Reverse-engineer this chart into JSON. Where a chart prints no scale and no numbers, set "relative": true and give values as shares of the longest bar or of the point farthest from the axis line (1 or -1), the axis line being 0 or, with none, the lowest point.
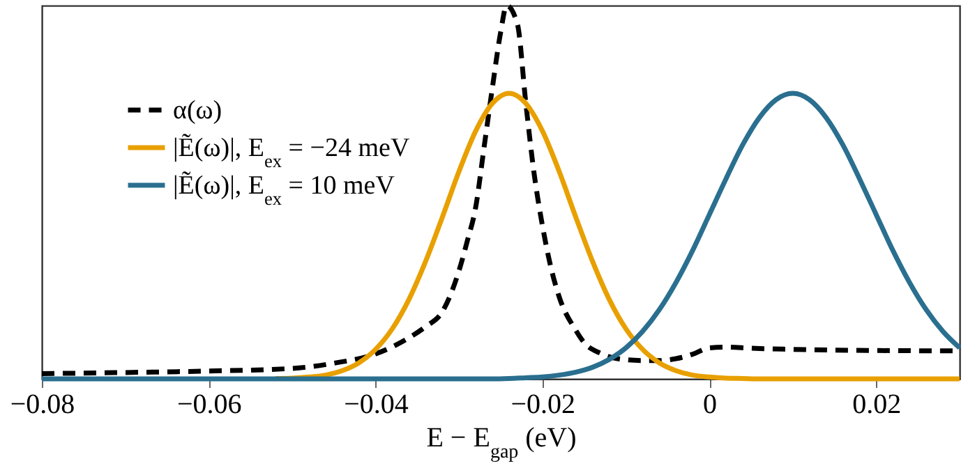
{
  "chart_data": {
    "type": "line",
    "relative": true,
    "xlabel": "E − E$_{gap}$ (eV)",
    "legend": "top left",
    "grid": false,
    "xlim": [
      -0.08,
      0.03
    ],
    "xticks": [
      -0.08,
      -0.06,
      -0.04,
      -0.02,
      0,
      0.02
    ],
    "x": [
      -0.08,
      -0.078,
      -0.076,
      -0.074,
      -0.072,
      -0.07,
      -0.068,
      -0.066,
      -0.064,
      -0.062,
      -0.06,
      -0.058,
      -0.056,
      -0.054,
      -0.052,
      -0.05,
      -0.048,
      -0.046,
      -0.044,
      -0.042,
      -0.04,
      -0.038,
      -0.036,
      -0.034,
      -0.032,
      -0.03,
      -0.028,
      -0.026,
      -0.024,
      -0.022,
      -0.02,
      -0.018,
      -0.016,
      -0.014,
      -0.012,
      -0.01,
      -0.008,
      -0.006,
      -0.004,
      -0.002,
      0,
      0.002,
      0.004,
      0.006,
      0.008,
      0.01,
      0.012,
      0.014,
      0.016,
      0.018,
      0.02,
      0.022,
      0.024,
      0.026,
      0.028,
      0.03
    ],
    "series": [
      {
        "name": "α(ω)",
        "color": "#000000",
        "line_style": "dashed",
        "x": [
          -0.08,
          -0.07,
          -0.06,
          -0.05,
          -0.045,
          -0.04,
          -0.036,
          -0.034,
          -0.032,
          -0.03,
          -0.029,
          -0.028,
          -0.027,
          -0.026,
          -0.025,
          -0.0243,
          -0.023,
          -0.022,
          -0.021,
          -0.02,
          -0.019,
          -0.018,
          -0.016,
          -0.015,
          -0.013,
          -0.011,
          -0.008,
          -0.006,
          -0.004,
          -0.002,
          0,
          0.002,
          0.005,
          0.01,
          0.02,
          0.03
        ],
        "values": [
          0.014,
          0.017,
          0.021,
          0.028,
          0.042,
          0.067,
          0.11,
          0.14,
          0.18,
          0.29,
          0.37,
          0.46,
          0.62,
          0.78,
          0.93,
          1,
          0.95,
          0.74,
          0.55,
          0.41,
          0.3,
          0.22,
          0.13,
          0.097,
          0.068,
          0.054,
          0.049,
          0.049,
          0.054,
          0.066,
          0.083,
          0.085,
          0.082,
          0.079,
          0.076,
          0.075
        ]
      },
      {
        "name": "|Ẽ(ω)|, E$_{ex}$ = −24 meV",
        "color": "#e8a000",
        "line_style": "solid",
        "values": [
          null,
          null,
          null,
          null,
          null,
          null,
          null,
          null,
          null,
          null,
          null,
          null,
          null,
          null,
          0.001,
          0.002,
          0.005,
          0.01,
          0.022,
          0.043,
          0.079,
          0.134,
          0.213,
          0.315,
          0.433,
          0.556,
          0.664,
          0.738,
          0.765,
          0.738,
          0.664,
          0.556,
          0.433,
          0.315,
          0.213,
          0.134,
          0.079,
          0.043,
          0.022,
          0.01,
          0.005,
          0.002,
          0.001,
          0,
          0,
          0,
          0,
          0,
          0,
          0,
          0,
          0,
          0,
          0,
          0,
          0
        ]
      },
      {
        "name": "|Ẽ(ω)|, E$_{ex}$ = 10 meV",
        "color": "#2a6f8f",
        "line_style": "solid",
        "values": [
          0,
          0,
          0,
          0,
          0,
          0,
          0,
          0,
          0,
          0,
          0,
          0,
          0,
          0,
          0,
          0,
          0,
          0,
          0,
          0,
          0,
          0,
          0,
          0,
          0,
          0,
          0,
          0,
          0.001,
          0.003,
          0.005,
          0.01,
          0.018,
          0.031,
          0.052,
          0.083,
          0.127,
          0.185,
          0.258,
          0.344,
          0.44,
          0.536,
          0.627,
          0.7,
          0.748,
          0.765,
          0.748,
          0.7,
          0.627,
          0.536,
          0.44,
          0.344,
          0.258,
          0.185,
          0.127,
          0.083
        ]
      }
    ]
  }
}
